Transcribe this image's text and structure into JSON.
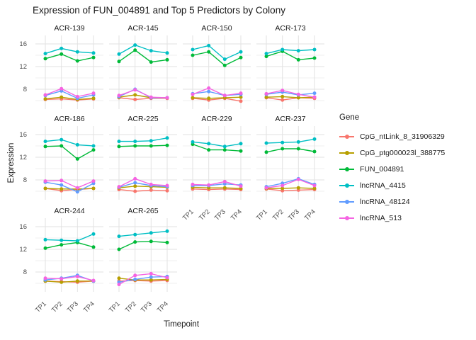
{
  "chart_data": {
    "type": "line",
    "title": "Expression of FUN_004891 and Top 5 Predictors by Colony",
    "xlabel": "Timepoint",
    "ylabel": "Expression",
    "legend_title": "Gene",
    "x": [
      "TP1",
      "TP2",
      "TP3",
      "TP4"
    ],
    "ylim": [
      4.5,
      17.5
    ],
    "yticks": [
      8,
      12,
      16
    ],
    "yticks_minor": [
      6,
      10,
      14
    ],
    "grid": true,
    "legend_position": "right",
    "genes": [
      {
        "name": "CpG_ntLink_8_31906329",
        "color": "#F8766D"
      },
      {
        "name": "CpG_ptg000023l_388775",
        "color": "#B79F00"
      },
      {
        "name": "FUN_004891",
        "color": "#00BA38"
      },
      {
        "name": "lncRNA_4415",
        "color": "#00BFC4"
      },
      {
        "name": "lncRNA_48124",
        "color": "#619CFF"
      },
      {
        "name": "lncRNA_513",
        "color": "#F564E2"
      }
    ],
    "facets": [
      {
        "name": "ACR-139",
        "series": {
          "CpG_ntLink_8_31906329": [
            6.2,
            6.3,
            6.1,
            6.3
          ],
          "CpG_ptg000023l_388775": [
            6.3,
            6.6,
            6.2,
            6.4
          ],
          "FUN_004891": [
            13.4,
            14.2,
            13.0,
            13.6
          ],
          "lncRNA_4415": [
            14.3,
            15.2,
            14.6,
            14.4
          ],
          "lncRNA_48124": [
            6.9,
            7.7,
            6.4,
            7.0
          ],
          "lncRNA_513": [
            7.0,
            8.1,
            6.7,
            7.3
          ]
        }
      },
      {
        "name": "ACR-145",
        "series": {
          "CpG_ntLink_8_31906329": [
            6.5,
            6.2,
            6.4,
            6.4
          ],
          "CpG_ptg000023l_388775": [
            6.6,
            7.0,
            6.5,
            6.5
          ],
          "FUN_004891": [
            12.9,
            14.9,
            12.8,
            13.2
          ],
          "lncRNA_4415": [
            14.2,
            15.8,
            14.8,
            14.4
          ],
          "lncRNA_48124": [
            6.7,
            8.0,
            6.5,
            6.5
          ],
          "lncRNA_513": [
            6.9,
            7.9,
            6.6,
            6.5
          ]
        }
      },
      {
        "name": "ACR-150",
        "series": {
          "CpG_ntLink_8_31906329": [
            6.4,
            6.1,
            6.4,
            5.9
          ],
          "CpG_ptg000023l_388775": [
            6.5,
            6.4,
            6.5,
            6.6
          ],
          "FUN_004891": [
            14.0,
            14.6,
            12.2,
            13.6
          ],
          "lncRNA_4415": [
            15.0,
            15.7,
            13.3,
            14.6
          ],
          "lncRNA_48124": [
            7.2,
            7.6,
            6.9,
            7.1
          ],
          "lncRNA_513": [
            7.1,
            8.2,
            6.9,
            7.3
          ]
        }
      },
      {
        "name": "ACR-173",
        "series": {
          "CpG_ntLink_8_31906329": [
            6.5,
            6.1,
            6.5,
            6.4
          ],
          "CpG_ptg000023l_388775": [
            6.6,
            6.7,
            6.5,
            6.6
          ],
          "FUN_004891": [
            13.8,
            14.7,
            13.2,
            13.5
          ],
          "lncRNA_4415": [
            14.3,
            15.0,
            14.8,
            15.0
          ],
          "lncRNA_48124": [
            7.1,
            7.5,
            7.0,
            7.3
          ],
          "lncRNA_513": [
            7.2,
            7.8,
            7.1,
            6.6
          ]
        }
      },
      {
        "name": "ACR-186",
        "series": {
          "CpG_ntLink_8_31906329": [
            6.5,
            6.1,
            6.3,
            6.5
          ],
          "CpG_ptg000023l_388775": [
            6.5,
            6.4,
            6.4,
            6.5
          ],
          "FUN_004891": [
            13.9,
            14.0,
            11.7,
            13.3
          ],
          "lncRNA_4415": [
            14.8,
            15.1,
            14.2,
            14.0
          ],
          "lncRNA_48124": [
            7.6,
            7.1,
            5.9,
            7.4
          ],
          "lncRNA_513": [
            7.8,
            7.9,
            6.6,
            7.8
          ]
        }
      },
      {
        "name": "ACR-225",
        "series": {
          "CpG_ntLink_8_31906329": [
            6.3,
            6.0,
            6.2,
            6.1
          ],
          "CpG_ptg000023l_388775": [
            6.6,
            6.9,
            6.8,
            6.7
          ],
          "FUN_004891": [
            13.9,
            14.0,
            14.0,
            14.1
          ],
          "lncRNA_4415": [
            14.8,
            14.8,
            14.9,
            15.4
          ],
          "lncRNA_48124": [
            6.7,
            7.5,
            7.0,
            6.8
          ],
          "lncRNA_513": [
            6.8,
            8.2,
            7.2,
            7.0
          ]
        }
      },
      {
        "name": "ACR-229",
        "series": {
          "CpG_ntLink_8_31906329": [
            6.4,
            6.3,
            6.4,
            6.3
          ],
          "CpG_ptg000023l_388775": [
            6.7,
            6.6,
            6.6,
            6.5
          ],
          "FUN_004891": [
            14.3,
            13.3,
            13.3,
            13.1
          ],
          "lncRNA_4415": [
            14.7,
            14.4,
            13.9,
            14.4
          ],
          "lncRNA_48124": [
            7.0,
            7.0,
            7.3,
            7.1
          ],
          "lncRNA_513": [
            7.2,
            7.1,
            7.7,
            6.9
          ]
        }
      },
      {
        "name": "ACR-237",
        "series": {
          "CpG_ntLink_8_31906329": [
            6.4,
            6.1,
            6.2,
            6.3
          ],
          "CpG_ptg000023l_388775": [
            6.5,
            6.5,
            6.6,
            6.5
          ],
          "FUN_004891": [
            12.9,
            13.5,
            13.5,
            13.0
          ],
          "lncRNA_4415": [
            14.5,
            14.6,
            14.7,
            15.2
          ],
          "lncRNA_48124": [
            6.8,
            7.4,
            8.2,
            7.2
          ],
          "lncRNA_513": [
            6.6,
            7.0,
            8.1,
            7.0
          ]
        }
      },
      {
        "name": "ACR-244",
        "series": {
          "CpG_ntLink_8_31906329": [
            6.4,
            6.3,
            6.2,
            6.4
          ],
          "CpG_ptg000023l_388775": [
            6.4,
            6.2,
            6.4,
            6.4
          ],
          "FUN_004891": [
            12.2,
            12.8,
            13.2,
            12.4
          ],
          "lncRNA_4415": [
            13.7,
            13.6,
            13.5,
            14.7
          ],
          "lncRNA_48124": [
            6.6,
            6.9,
            7.4,
            6.4
          ],
          "lncRNA_513": [
            6.9,
            6.8,
            7.2,
            6.5
          ]
        }
      },
      {
        "name": "ACR-265",
        "series": {
          "CpG_ntLink_8_31906329": [
            6.4,
            6.5,
            6.4,
            6.5
          ],
          "CpG_ptg000023l_388775": [
            6.9,
            6.6,
            6.6,
            6.7
          ],
          "FUN_004891": [
            12.0,
            13.3,
            13.4,
            13.2
          ],
          "lncRNA_4415": [
            14.3,
            14.6,
            14.9,
            15.2
          ],
          "lncRNA_48124": [
            6.2,
            6.7,
            7.1,
            7.2
          ],
          "lncRNA_513": [
            5.8,
            7.4,
            7.7,
            7.0
          ]
        }
      }
    ],
    "grid_color_major": "#e2e2e2",
    "grid_color_minor": "#efefef"
  }
}
